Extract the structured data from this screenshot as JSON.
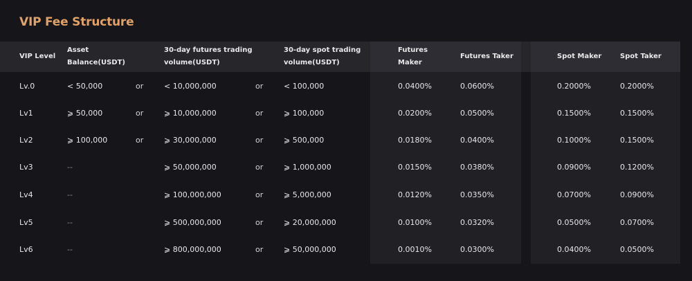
{
  "title": "VIP Fee Structure",
  "headers": {
    "vip_level": "VIP Level",
    "asset_line1": "Asset",
    "asset_line2": "Balance(USDT)",
    "futures_vol_line1": "30-day futures trading",
    "futures_vol_line2": "volume(USDT)",
    "spot_vol_line1": "30-day spot trading",
    "spot_vol_line2": "volume(USDT)",
    "futures_maker_line1": "Futures",
    "futures_maker_line2": "Maker",
    "futures_taker": "Futures Taker",
    "spot_maker": "Spot Maker",
    "spot_taker": "Spot Taker"
  },
  "rows": [
    {
      "level": "Lv.0",
      "asset": "< 50,000",
      "or1": "or",
      "futures_vol": "< 10,000,000",
      "or2": "or",
      "spot_vol": "< 100,000",
      "futures_maker": "0.0400%",
      "futures_taker": "0.0600%",
      "spot_maker": "0.2000%",
      "spot_taker": "0.2000%"
    },
    {
      "level": "Lv1",
      "asset": "⩾ 50,000",
      "or1": "or",
      "futures_vol": "⩾ 10,000,000",
      "or2": "or",
      "spot_vol": "⩾ 100,000",
      "futures_maker": "0.0200%",
      "futures_taker": "0.0500%",
      "spot_maker": "0.1500%",
      "spot_taker": "0.1500%"
    },
    {
      "level": "Lv2",
      "asset": "⩾ 100,000",
      "or1": "or",
      "futures_vol": "⩾ 30,000,000",
      "or2": "or",
      "spot_vol": "⩾ 500,000",
      "futures_maker": "0.0180%",
      "futures_taker": "0.0400%",
      "spot_maker": "0.1000%",
      "spot_taker": "0.1500%"
    },
    {
      "level": "Lv3",
      "asset": "--",
      "or1": "",
      "futures_vol": "⩾ 50,000,000",
      "or2": "or",
      "spot_vol": "⩾ 1,000,000",
      "futures_maker": "0.0150%",
      "futures_taker": "0.0380%",
      "spot_maker": "0.0900%",
      "spot_taker": "0.1200%"
    },
    {
      "level": "Lv4",
      "asset": "--",
      "or1": "",
      "futures_vol": "⩾ 100,000,000",
      "or2": "or",
      "spot_vol": "⩾ 5,000,000",
      "futures_maker": "0.0120%",
      "futures_taker": "0.0350%",
      "spot_maker": "0.0700%",
      "spot_taker": "0.0900%"
    },
    {
      "level": "Lv5",
      "asset": "--",
      "or1": "",
      "futures_vol": "⩾ 500,000,000",
      "or2": "or",
      "spot_vol": "⩾ 20,000,000",
      "futures_maker": "0.0100%",
      "futures_taker": "0.0320%",
      "spot_maker": "0.0500%",
      "spot_taker": "0.0700%"
    },
    {
      "level": "Lv6",
      "asset": "--",
      "or1": "",
      "futures_vol": "⩾ 800,000,000",
      "or2": "or",
      "spot_vol": "⩾ 50,000,000",
      "futures_maker": "0.0010%",
      "futures_taker": "0.0300%",
      "spot_maker": "0.0400%",
      "spot_taker": "0.0500%"
    }
  ],
  "colors": {
    "title": "#e0a266",
    "background": "#16161a",
    "header_bar": "#26262b",
    "panel": "#202025"
  }
}
